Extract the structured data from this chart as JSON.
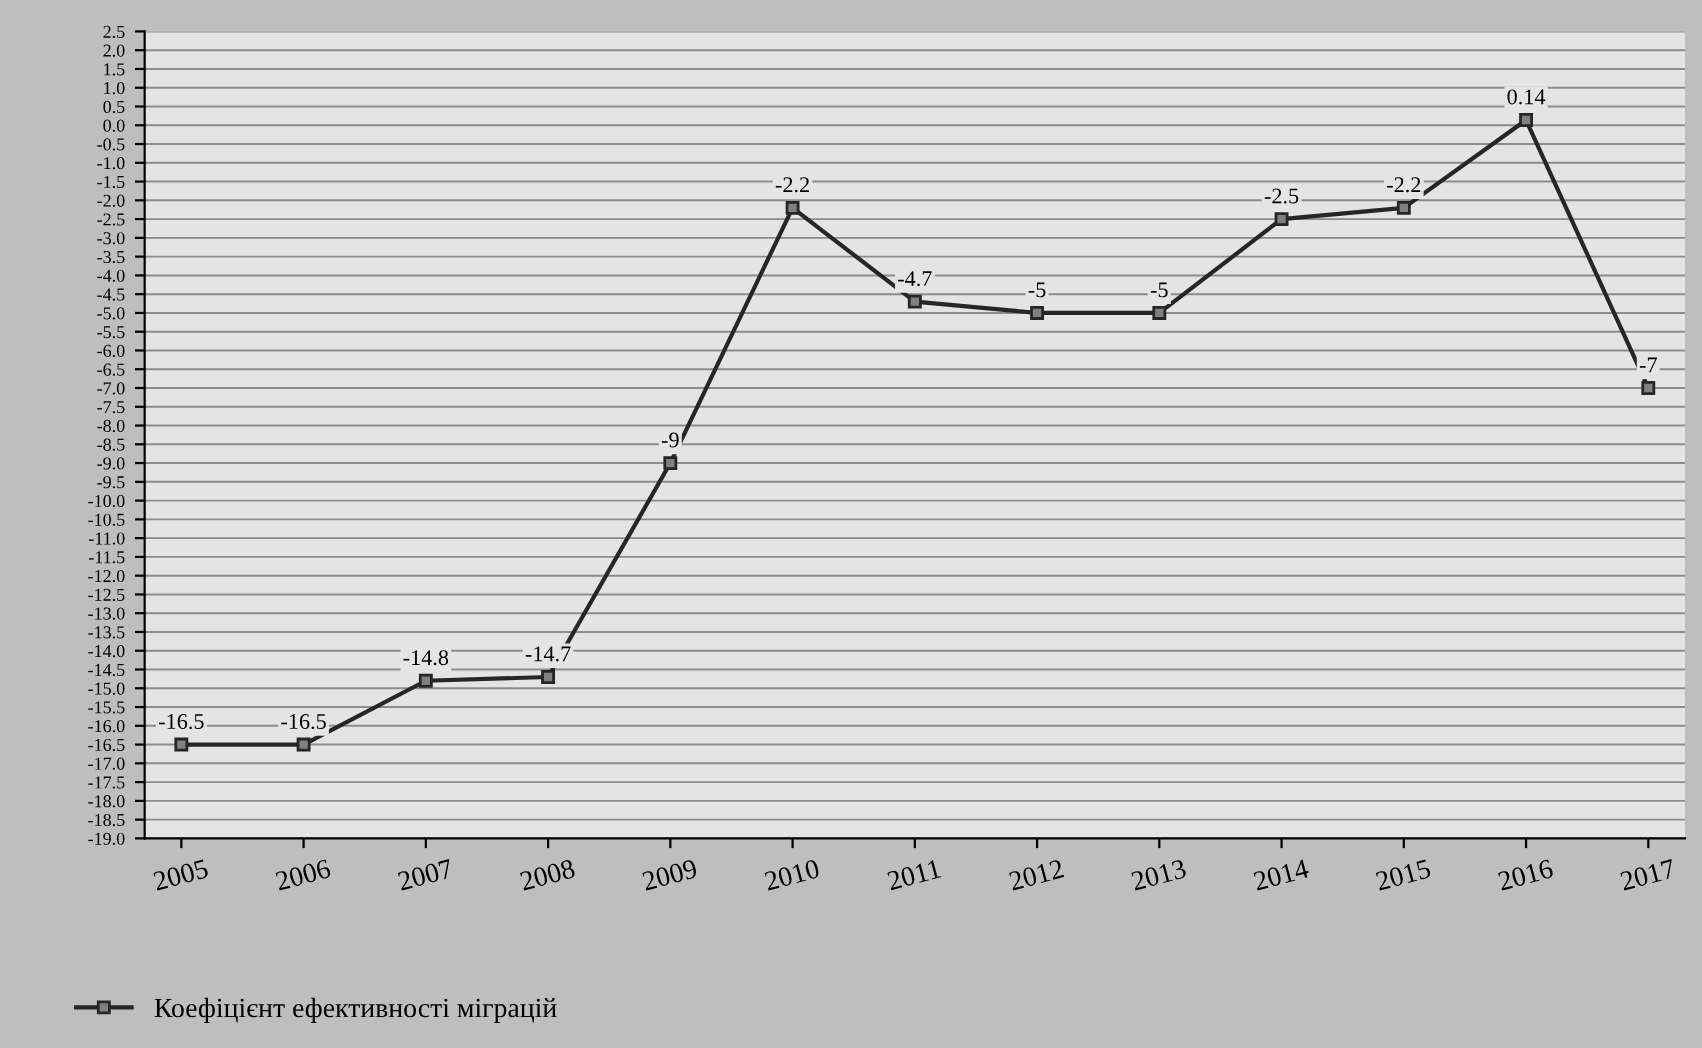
{
  "chart_data": {
    "type": "line",
    "categories": [
      "2005",
      "2006",
      "2007",
      "2008",
      "2009",
      "2010",
      "2011",
      "2012",
      "2013",
      "2014",
      "2015",
      "2016",
      "2017"
    ],
    "series": [
      {
        "name": "Коефіцієнт ефективності міграцій",
        "color": "#262626",
        "values": [
          -16.5,
          -16.5,
          -14.8,
          -14.7,
          -9,
          -2.2,
          -4.7,
          -5,
          -5,
          -2.5,
          -2.2,
          0.14,
          -7
        ]
      }
    ],
    "ylim": [
      -19,
      2.5
    ],
    "yticks": [
      {
        "value": -19,
        "label": "-19.0"
      },
      {
        "value": -18.5,
        "label": "-18.5"
      },
      {
        "value": -18,
        "label": "-18.0"
      },
      {
        "value": -17.5,
        "label": "-17.5"
      },
      {
        "value": -17,
        "label": "-17.0"
      },
      {
        "value": -16.5,
        "label": "-16.5"
      },
      {
        "value": -16,
        "label": "-16.0"
      },
      {
        "value": -15.5,
        "label": "-15.5"
      },
      {
        "value": -15,
        "label": "-15.0"
      },
      {
        "value": -14.5,
        "label": "-14.5"
      },
      {
        "value": -14,
        "label": "-14.0"
      },
      {
        "value": -13.5,
        "label": "-13.5"
      },
      {
        "value": -13,
        "label": "-13.0"
      },
      {
        "value": -12.5,
        "label": "-12.5"
      },
      {
        "value": -12,
        "label": "-12.0"
      },
      {
        "value": -11.5,
        "label": "-11.5"
      },
      {
        "value": -11,
        "label": "-11.0"
      },
      {
        "value": -10.5,
        "label": "-10.5"
      },
      {
        "value": -10,
        "label": "-10.0"
      },
      {
        "value": -9.5,
        "label": "-9.5"
      },
      {
        "value": -9,
        "label": "-9.0"
      },
      {
        "value": -8.5,
        "label": "-8.5"
      },
      {
        "value": -8,
        "label": "-8.0"
      },
      {
        "value": -7.5,
        "label": "-7.5"
      },
      {
        "value": -7,
        "label": "-7.0"
      },
      {
        "value": -6.5,
        "label": "-6.5"
      },
      {
        "value": -6,
        "label": "-6.0"
      },
      {
        "value": -5.5,
        "label": "-5.5"
      },
      {
        "value": -5,
        "label": "-5.0"
      },
      {
        "value": -4.5,
        "label": "-4.5"
      },
      {
        "value": -4,
        "label": "-4.0"
      },
      {
        "value": -3.5,
        "label": "-3.5"
      },
      {
        "value": -3,
        "label": "-3.0"
      },
      {
        "value": -2.5,
        "label": "-2.5"
      },
      {
        "value": -2,
        "label": "-2.0"
      },
      {
        "value": -1.5,
        "label": "-1.5"
      },
      {
        "value": -1,
        "label": "-1.0"
      },
      {
        "value": -0.5,
        "label": "-0.5"
      },
      {
        "value": 0,
        "label": "0.0"
      },
      {
        "value": 0.5,
        "label": "0.5"
      },
      {
        "value": 1,
        "label": "1.0"
      },
      {
        "value": 1.5,
        "label": "1.5"
      },
      {
        "value": 2,
        "label": "2.0"
      },
      {
        "value": 2.5,
        "label": "2.5"
      }
    ],
    "grid": "y",
    "legend": "bottom left",
    "marker": "square",
    "line_style": "solid",
    "data_labels": true
  }
}
